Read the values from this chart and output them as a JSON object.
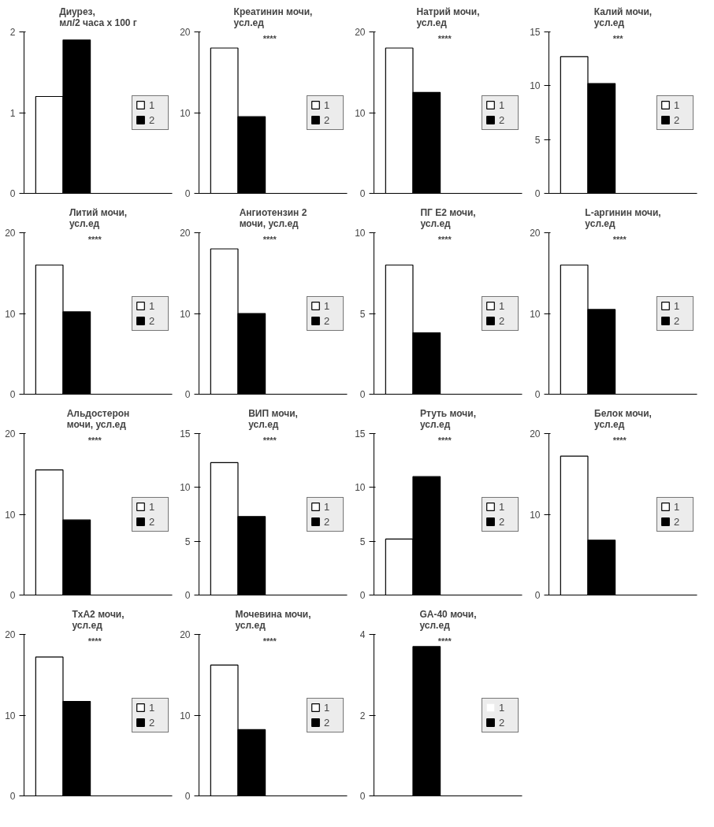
{
  "chart_data": [
    {
      "type": "bar",
      "title": "Диурез,\nмл/2 часа х 100 г",
      "categories": [
        null
      ],
      "series": [
        {
          "name": "1",
          "color": "#ffffff",
          "values": [
            1.2
          ]
        },
        {
          "name": "2",
          "color": "#000000",
          "values": [
            1.9
          ]
        }
      ],
      "ylim": [
        0,
        2
      ],
      "yticks": [
        0,
        1,
        2
      ],
      "tick_labels": "y",
      "legend": "right"
    },
    {
      "type": "bar",
      "title": "Креатинин мочи,\nусл.ед",
      "categories": [
        null
      ],
      "series": [
        {
          "name": "1",
          "color": "#ffffff",
          "values": [
            18
          ]
        },
        {
          "name": "2",
          "color": "#000000",
          "values": [
            9.5
          ]
        }
      ],
      "ylim": [
        0,
        20
      ],
      "yticks": [
        0,
        10,
        20
      ],
      "tick_labels": "y",
      "legend": "right",
      "annotations": [
        "****"
      ]
    },
    {
      "type": "bar",
      "title": "Натрий мочи,\nусл.ед",
      "categories": [
        null
      ],
      "series": [
        {
          "name": "1",
          "color": "#ffffff",
          "values": [
            18
          ]
        },
        {
          "name": "2",
          "color": "#000000",
          "values": [
            12.5
          ]
        }
      ],
      "ylim": [
        0,
        20
      ],
      "yticks": [
        0,
        10,
        20
      ],
      "tick_labels": "y",
      "legend": "right",
      "annotations": [
        "****"
      ]
    },
    {
      "type": "bar",
      "title": "Калий мочи,\nусл.ед",
      "categories": [
        null
      ],
      "series": [
        {
          "name": "1",
          "color": "#ffffff",
          "values": [
            12.7
          ]
        },
        {
          "name": "2",
          "color": "#000000",
          "values": [
            10.2
          ]
        }
      ],
      "ylim": [
        0,
        15
      ],
      "yticks": [
        0,
        5,
        10,
        15
      ],
      "tick_labels": "y",
      "legend": "right",
      "annotations": [
        "***"
      ]
    },
    {
      "type": "bar",
      "title": "Литий мочи,\nусл.ед",
      "categories": [
        null
      ],
      "series": [
        {
          "name": "1",
          "color": "#ffffff",
          "values": [
            16
          ]
        },
        {
          "name": "2",
          "color": "#000000",
          "values": [
            10.2
          ]
        }
      ],
      "ylim": [
        0,
        20
      ],
      "yticks": [
        0,
        10,
        20
      ],
      "tick_labels": "y",
      "legend": "right",
      "annotations": [
        "****"
      ]
    },
    {
      "type": "bar",
      "title": "Ангиотензин 2\nмочи, усл.ед",
      "categories": [
        null
      ],
      "series": [
        {
          "name": "1",
          "color": "#ffffff",
          "values": [
            18
          ]
        },
        {
          "name": "2",
          "color": "#000000",
          "values": [
            10
          ]
        }
      ],
      "ylim": [
        0,
        20
      ],
      "yticks": [
        0,
        10,
        20
      ],
      "tick_labels": "y",
      "legend": "right",
      "annotations": [
        "****"
      ]
    },
    {
      "type": "bar",
      "title": "ПГ Е2 мочи,\nусл.ед",
      "categories": [
        null
      ],
      "series": [
        {
          "name": "1",
          "color": "#ffffff",
          "values": [
            8
          ]
        },
        {
          "name": "2",
          "color": "#000000",
          "values": [
            3.8
          ]
        }
      ],
      "ylim": [
        0,
        10
      ],
      "yticks": [
        0,
        5,
        10
      ],
      "tick_labels": "y",
      "legend": "right",
      "annotations": [
        "****"
      ]
    },
    {
      "type": "bar",
      "title": "L-аргинин мочи,\nусл.ед",
      "categories": [
        null
      ],
      "series": [
        {
          "name": "1",
          "color": "#ffffff",
          "values": [
            16
          ]
        },
        {
          "name": "2",
          "color": "#000000",
          "values": [
            10.5
          ]
        }
      ],
      "ylim": [
        0,
        20
      ],
      "yticks": [
        0,
        10,
        20
      ],
      "tick_labels": "y",
      "legend": "right",
      "annotations": [
        "****"
      ]
    },
    {
      "type": "bar",
      "title": "Альдостерон\nмочи, усл.ед",
      "categories": [
        null
      ],
      "series": [
        {
          "name": "1",
          "color": "#ffffff",
          "values": [
            15.5
          ]
        },
        {
          "name": "2",
          "color": "#000000",
          "values": [
            9.3
          ]
        }
      ],
      "ylim": [
        0,
        20
      ],
      "yticks": [
        0,
        10,
        20
      ],
      "tick_labels": "y",
      "legend": "right",
      "annotations": [
        "****"
      ]
    },
    {
      "type": "bar",
      "title": "ВИП мочи,\nусл.ед",
      "categories": [
        null
      ],
      "series": [
        {
          "name": "1",
          "color": "#ffffff",
          "values": [
            12.3
          ]
        },
        {
          "name": "2",
          "color": "#000000",
          "values": [
            7.3
          ]
        }
      ],
      "ylim": [
        0,
        15
      ],
      "yticks": [
        0,
        5,
        10,
        15
      ],
      "tick_labels": "y",
      "legend": "right",
      "annotations": [
        "****"
      ]
    },
    {
      "type": "bar",
      "title": "Ртуть мочи,\nусл.ед",
      "categories": [
        null
      ],
      "series": [
        {
          "name": "1",
          "color": "#ffffff",
          "values": [
            5.2
          ]
        },
        {
          "name": "2",
          "color": "#000000",
          "values": [
            11
          ]
        }
      ],
      "ylim": [
        0,
        15
      ],
      "yticks": [
        0,
        5,
        10,
        15
      ],
      "tick_labels": "y",
      "legend": "right",
      "annotations": [
        "****"
      ]
    },
    {
      "type": "bar",
      "title": "Белок мочи,\nусл.ед",
      "categories": [
        null
      ],
      "series": [
        {
          "name": "1",
          "color": "#ffffff",
          "values": [
            17.2
          ]
        },
        {
          "name": "2",
          "color": "#000000",
          "values": [
            6.8
          ]
        }
      ],
      "ylim": [
        0,
        20
      ],
      "yticks": [
        0,
        10,
        20
      ],
      "tick_labels": "y",
      "legend": "right",
      "annotations": [
        "****"
      ]
    },
    {
      "type": "bar",
      "title": "TxA2 мочи,\nусл.ед",
      "categories": [
        null
      ],
      "series": [
        {
          "name": "1",
          "color": "#ffffff",
          "values": [
            17.2
          ]
        },
        {
          "name": "2",
          "color": "#000000",
          "values": [
            11.7
          ]
        }
      ],
      "ylim": [
        0,
        20
      ],
      "yticks": [
        0,
        10,
        20
      ],
      "tick_labels": "y",
      "legend": "right",
      "annotations": [
        "****"
      ]
    },
    {
      "type": "bar",
      "title": "Мочевина мочи,\nусл.ед",
      "categories": [
        null
      ],
      "series": [
        {
          "name": "1",
          "color": "#ffffff",
          "values": [
            16.2
          ]
        },
        {
          "name": "2",
          "color": "#000000",
          "values": [
            8.2
          ]
        }
      ],
      "ylim": [
        0,
        20
      ],
      "yticks": [
        0,
        10,
        20
      ],
      "tick_labels": "y",
      "legend": "right",
      "annotations": [
        "****"
      ]
    },
    {
      "type": "bar",
      "title": "GA-40 мочи,\nусл.ед",
      "categories": [
        null
      ],
      "series": [
        {
          "name": "1",
          "color": "#ffffff",
          "values": [
            0
          ]
        },
        {
          "name": "2",
          "color": "#000000",
          "values": [
            3.7
          ]
        }
      ],
      "ylim": [
        0,
        4
      ],
      "yticks": [
        0,
        2,
        4
      ],
      "tick_labels": "y",
      "legend": "right",
      "annotations": [
        "****"
      ]
    }
  ]
}
